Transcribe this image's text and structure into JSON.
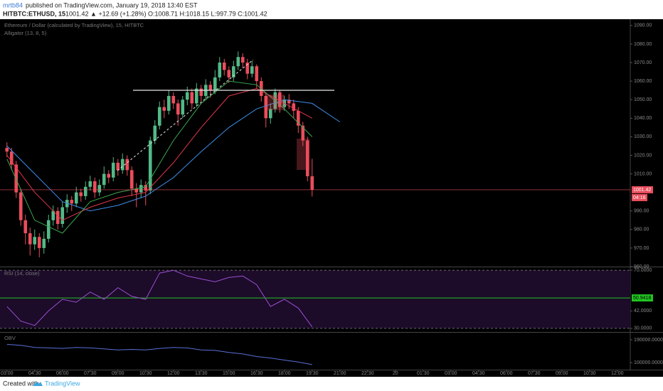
{
  "header": {
    "author": "mrtb84",
    "published": "published on TradingView.com, January 19, 2018 13:40 EST",
    "symbol": "HITBTC:ETHUSD, 15",
    "quote": "1001.42 ▲ +12.69 (+1.28%) O:1008.71 H:1018.15 L:997.79 C:1001.42"
  },
  "footer": {
    "created": "Created with",
    "brand": "TradingView"
  },
  "chart_data": [
    {
      "type": "candlestick",
      "title": "Ethereum / Dollar (calculated by TradingView), 15, HITBTC",
      "subtitle": "Alligator (13, 8, 5)",
      "up_color": "#53b987",
      "down_color": "#eb4d5c",
      "xlim": [
        -1.5,
        134.8
      ],
      "xticks": [
        {
          "value": 0,
          "label": "03:00"
        },
        {
          "value": 6,
          "label": "04:30"
        },
        {
          "value": 12,
          "label": "06:00"
        },
        {
          "value": 18,
          "label": "07:30"
        },
        {
          "value": 24,
          "label": "09:00"
        },
        {
          "value": 30,
          "label": "10:30"
        },
        {
          "value": 36,
          "label": "12:00"
        },
        {
          "value": 42,
          "label": "13:30"
        },
        {
          "value": 48,
          "label": "15:00"
        },
        {
          "value": 54,
          "label": "16:30"
        },
        {
          "value": 60,
          "label": "18:00"
        },
        {
          "value": 66,
          "label": "19:30"
        },
        {
          "value": 72,
          "label": "21:00"
        },
        {
          "value": 78,
          "label": "22:30"
        },
        {
          "value": 84,
          "label": "20"
        },
        {
          "value": 90,
          "label": "01:30"
        },
        {
          "value": 96,
          "label": "03:00"
        },
        {
          "value": 102,
          "label": "04:30"
        },
        {
          "value": 108,
          "label": "06:00"
        },
        {
          "value": 114,
          "label": "07:30"
        },
        {
          "value": 120,
          "label": "09:00"
        },
        {
          "value": 126,
          "label": "10:30"
        },
        {
          "value": 132,
          "label": "12:00"
        }
      ],
      "ylim": [
        960,
        1093
      ],
      "yticks": [
        {
          "value": 1090,
          "label": "1090.00"
        },
        {
          "value": 1080,
          "label": "1080.00"
        },
        {
          "value": 1070,
          "label": "1070.00"
        },
        {
          "value": 1060,
          "label": "1060.00"
        },
        {
          "value": 1050,
          "label": "1050.00"
        },
        {
          "value": 1040,
          "label": "1040.00"
        },
        {
          "value": 1030,
          "label": "1030.00"
        },
        {
          "value": 1020,
          "label": "1020.00"
        },
        {
          "value": 1010,
          "label": "1010.00"
        },
        {
          "value": 990,
          "label": "990.00"
        },
        {
          "value": 980,
          "label": "980.00"
        },
        {
          "value": 970,
          "label": "970.00"
        },
        {
          "value": 960,
          "label": "960.00"
        }
      ],
      "last_price": 1001.42,
      "last_price_label": "1001.42",
      "countdown": "04:16",
      "last_color": "#eb4d5c",
      "x": [
        0,
        1,
        2,
        3,
        4,
        5,
        6,
        7,
        8,
        9,
        10,
        11,
        12,
        13,
        14,
        15,
        16,
        17,
        18,
        19,
        20,
        21,
        22,
        23,
        24,
        25,
        26,
        27,
        28,
        29,
        30,
        31,
        32,
        33,
        34,
        35,
        36,
        37,
        38,
        39,
        40,
        41,
        42,
        43,
        44,
        45,
        46,
        47,
        48,
        49,
        50,
        51,
        52,
        53,
        54,
        55,
        56,
        57,
        58,
        59,
        60,
        61,
        62,
        63,
        64,
        65,
        66
      ],
      "open": [
        1024,
        1022,
        1015,
        1000,
        985,
        978,
        972,
        976,
        970,
        975,
        985,
        990,
        983,
        992,
        996,
        994,
        1000,
        998,
        1003,
        1006,
        1000,
        1004,
        1010,
        1008,
        1016,
        1012,
        1018,
        1012,
        1002,
        1000,
        1004,
        1001,
        1028,
        1036,
        1046,
        1044,
        1052,
        1048,
        1042,
        1050,
        1054,
        1048,
        1056,
        1052,
        1058,
        1055,
        1062,
        1070,
        1066,
        1062,
        1068,
        1073,
        1070,
        1064,
        1068,
        1060,
        1052,
        1040,
        1045,
        1054,
        1046,
        1050,
        1048,
        1044,
        1036,
        1028,
        1008.71
      ],
      "high": [
        1027,
        1024,
        1017,
        1002,
        988,
        981,
        980,
        978,
        979,
        988,
        993,
        992,
        995,
        999,
        998,
        1003,
        1002,
        1006,
        1009,
        1008,
        1007,
        1014,
        1012,
        1019,
        1018,
        1021,
        1020,
        1014,
        1005,
        1007,
        1006,
        1030,
        1039,
        1049,
        1050,
        1055,
        1054,
        1050,
        1052,
        1057,
        1056,
        1059,
        1058,
        1061,
        1060,
        1066,
        1073,
        1072,
        1068,
        1071,
        1076,
        1075,
        1072,
        1071,
        1069,
        1062,
        1054,
        1048,
        1056,
        1055,
        1052,
        1053,
        1050,
        1046,
        1038,
        1030,
        1018.15
      ],
      "low": [
        1019,
        1012,
        997,
        982,
        972,
        966,
        969,
        965,
        967,
        973,
        982,
        980,
        981,
        989,
        990,
        992,
        995,
        996,
        1001,
        997,
        998,
        1002,
        1005,
        1006,
        1009,
        1010,
        1009,
        998,
        992,
        997,
        993,
        999,
        1026,
        1034,
        1040,
        1042,
        1045,
        1036,
        1040,
        1047,
        1045,
        1046,
        1049,
        1050,
        1051,
        1053,
        1060,
        1063,
        1059,
        1060,
        1066,
        1067,
        1061,
        1062,
        1056,
        1049,
        1035,
        1037,
        1043,
        1043,
        1044,
        1045,
        1040,
        1032,
        1025,
        1006,
        997.79
      ],
      "close": [
        1022,
        1015,
        1000,
        985,
        978,
        972,
        976,
        970,
        975,
        985,
        990,
        983,
        992,
        996,
        994,
        1000,
        998,
        1003,
        1006,
        1000,
        1004,
        1010,
        1008,
        1016,
        1012,
        1018,
        1012,
        1002,
        1000,
        1004,
        1001,
        1028,
        1036,
        1046,
        1044,
        1052,
        1048,
        1042,
        1050,
        1054,
        1048,
        1056,
        1052,
        1058,
        1055,
        1062,
        1070,
        1066,
        1062,
        1068,
        1073,
        1070,
        1064,
        1068,
        1060,
        1052,
        1040,
        1045,
        1054,
        1046,
        1050,
        1048,
        1044,
        1036,
        1028,
        1008.71,
        1001.42
      ],
      "series": [
        {
          "color": "#3c8de8",
          "x": [
            0,
            6,
            12,
            18,
            24,
            30,
            36,
            42,
            48,
            54,
            60,
            66,
            72
          ],
          "values": [
            1025,
            1010,
            995,
            990,
            993,
            998,
            1008,
            1022,
            1035,
            1045,
            1050,
            1048,
            1038
          ]
        },
        {
          "color": "#e0364b",
          "x": [
            0,
            6,
            12,
            18,
            24,
            30,
            36,
            42,
            48,
            54,
            60,
            66,
            72
          ],
          "values": [
            1020,
            1000,
            985,
            992,
            997,
            1000,
            1016,
            1035,
            1052,
            1056,
            1048,
            1040,
            null
          ]
        },
        {
          "color": "#3aa84d",
          "x": [
            0,
            6,
            12,
            18,
            24,
            30,
            36,
            42,
            48,
            54,
            60,
            66,
            72
          ],
          "values": [
            1018,
            985,
            978,
            995,
            1000,
            1003,
            1028,
            1048,
            1060,
            1058,
            1045,
            1030,
            null
          ]
        }
      ]
    },
    {
      "type": "line",
      "title": "RSI (14, close)",
      "band": [
        30,
        70
      ],
      "band_color": "#1c0b29",
      "ylim": [
        27.5,
        72
      ],
      "yticks": [
        {
          "value": 70,
          "label": "70.0000"
        },
        {
          "value": 42,
          "label": "42.0000"
        },
        {
          "value": 30,
          "label": "30.0000"
        }
      ],
      "level": {
        "value": 50.9418,
        "label": "50.9418"
      },
      "level_color": "#22c422",
      "series": [
        {
          "color": "#9b4fd0",
          "x": [
            0,
            3,
            6,
            9,
            12,
            15,
            18,
            21,
            24,
            27,
            30,
            33,
            36,
            39,
            42,
            45,
            48,
            51,
            54,
            57,
            60,
            63,
            66
          ],
          "values": [
            45,
            35,
            32,
            42,
            50,
            48,
            55,
            50,
            58,
            52,
            50,
            68,
            70,
            66,
            64,
            62,
            65,
            66,
            60,
            45,
            50,
            44,
            31
          ]
        }
      ]
    },
    {
      "type": "line",
      "title": "OBV",
      "ylim": [
        72000,
        218000
      ],
      "yticks": [
        {
          "value": 190000,
          "label": "190000.0000"
        },
        {
          "value": 100000,
          "label": "100000.0000"
        }
      ],
      "series": [
        {
          "color": "#5a6fd6",
          "x": [
            0,
            3,
            6,
            9,
            12,
            15,
            18,
            21,
            24,
            27,
            30,
            33,
            36,
            39,
            42,
            45,
            48,
            51,
            54,
            57,
            60,
            63,
            66
          ],
          "values": [
            172000,
            168000,
            160000,
            158000,
            156000,
            160000,
            158000,
            154000,
            150000,
            152000,
            150000,
            156000,
            160000,
            158000,
            150000,
            148000,
            140000,
            134000,
            124000,
            118000,
            110000,
            102000,
            92000
          ]
        }
      ]
    }
  ]
}
